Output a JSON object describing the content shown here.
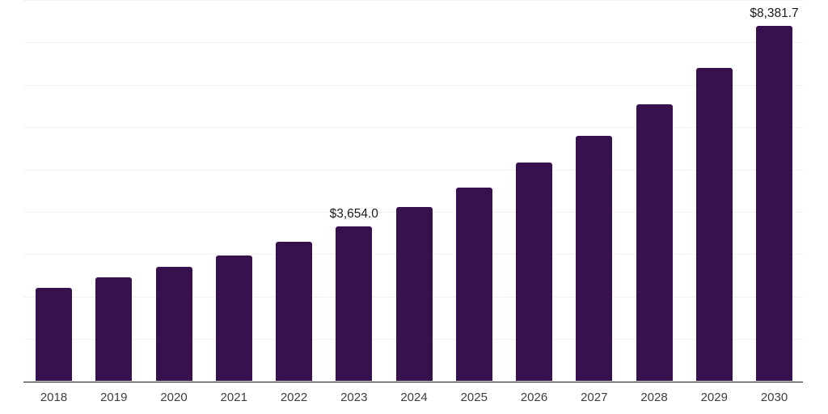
{
  "chart_data": {
    "type": "bar",
    "title": "",
    "xlabel": "",
    "ylabel": "",
    "categories": [
      "2018",
      "2019",
      "2020",
      "2021",
      "2022",
      "2023",
      "2024",
      "2025",
      "2026",
      "2027",
      "2028",
      "2029",
      "2030"
    ],
    "values": [
      2212,
      2455,
      2695,
      2960,
      3300,
      3654.0,
      4118,
      4576,
      5168,
      5797,
      6540,
      7396,
      8381.7
    ],
    "data_labels": {
      "2023": "$3,654.0",
      "2030": "$8,381.7"
    },
    "ylim": [
      0,
      9000
    ],
    "gridline_step": 1000,
    "grid": true,
    "legend": false,
    "colors": {
      "bar": "#36114E",
      "gridline": "#f1f1f1",
      "axis_line": "#1a1a1a",
      "x_tick_label": "#3d3d3d",
      "data_label": "#1a1a1a"
    }
  }
}
